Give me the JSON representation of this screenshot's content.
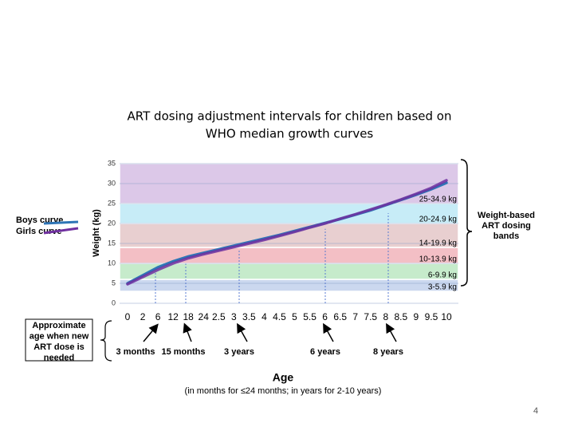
{
  "chart_data": {
    "type": "line",
    "title": [
      "ART dosing adjustment intervals for children based on",
      "WHO median growth curves"
    ],
    "y_axis_label": "Weight (kg)",
    "x_axis_label": "Age",
    "x_axis_sublabel": "(in months for ≤24 months; in years for 2-10 years)",
    "categories": [
      "0",
      "2",
      "6",
      "12",
      "18",
      "24",
      "2.5",
      "3",
      "3.5",
      "4",
      "4.5",
      "5",
      "5.5",
      "6",
      "6.5",
      "7",
      "7.5",
      "8",
      "8.5",
      "9",
      "9.5",
      "10"
    ],
    "series": [
      {
        "name": "Boys curve",
        "color": "#2e75b6",
        "values": [
          5,
          7,
          9,
          10.5,
          11.7,
          12.6,
          13.5,
          14.4,
          15.3,
          16.2,
          17.1,
          18.1,
          19.1,
          20.1,
          21.1,
          22.2,
          23.3,
          24.6,
          25.9,
          27.2,
          28.6,
          30.2
        ]
      },
      {
        "name": "Girls curve",
        "color": "#7030a0",
        "values": [
          4.8,
          6.6,
          8.4,
          10,
          11.3,
          12.3,
          13.2,
          14.1,
          15,
          15.9,
          16.9,
          17.9,
          19,
          20,
          21.2,
          22.3,
          23.5,
          24.7,
          26,
          27.4,
          28.9,
          30.8
        ]
      }
    ],
    "ylim": [
      0,
      35
    ],
    "yticks": [
      0,
      5,
      10,
      15,
      20,
      25,
      30,
      35
    ],
    "grid": true,
    "bands": [
      {
        "label": "3-5.9 kg",
        "from": 3,
        "to": 6,
        "color": "#cbd8ef"
      },
      {
        "label": "6-9.9 kg",
        "from": 6,
        "to": 10,
        "color": "#c6ebcb"
      },
      {
        "label": "10-13.9 kg",
        "from": 10,
        "to": 14,
        "color": "#f3bfc5"
      },
      {
        "label": "14-19.9 kg",
        "from": 14,
        "to": 20,
        "color": "#e8cfd0"
      },
      {
        "label": "20-24.9 kg",
        "from": 20,
        "to": 25,
        "color": "#c7ecf7"
      },
      {
        "label": "25-34.9 kg",
        "from": 25,
        "to": 35,
        "color": "#dcc8e8"
      }
    ],
    "bands_label": "Weight-based ART dosing bands",
    "age_note": "Approximate age when new ART dose is needed",
    "age_markers": [
      "3 months",
      "15 months",
      "3 years",
      "6 years",
      "8 years"
    ]
  },
  "page_number": "4"
}
